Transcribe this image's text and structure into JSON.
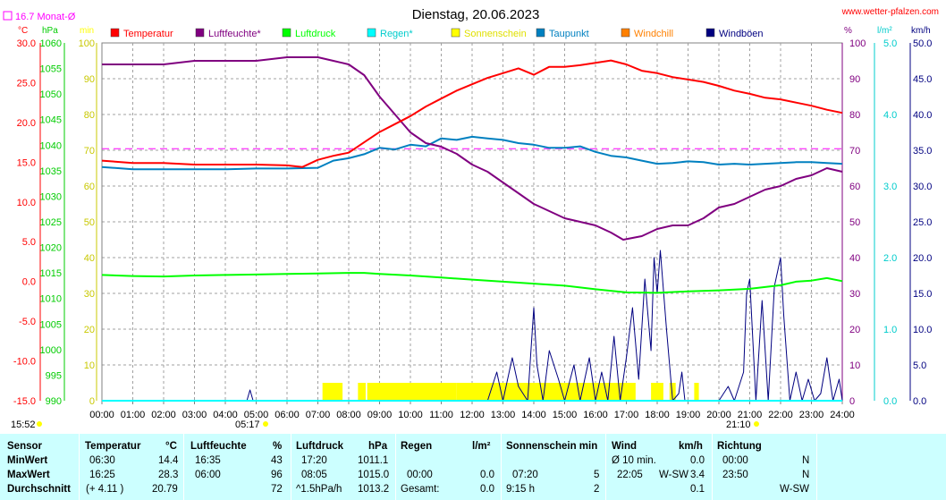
{
  "header": {
    "title": "Dienstag, 20.06.2023",
    "site": "www.wetter-pfalzen.com",
    "month_avg": "16.7 Monat-Ø",
    "unit_left": [
      "°C",
      "hPa",
      "min"
    ],
    "unit_right": [
      "%",
      "l/m²",
      "km/h"
    ]
  },
  "legend": [
    {
      "label": "Temperatur",
      "color": "#ff0000"
    },
    {
      "label": "Luftfeuchte*",
      "color": "#800080"
    },
    {
      "label": "Luftdruck",
      "color": "#00ff00"
    },
    {
      "label": "Regen*",
      "color": "#00ffff"
    },
    {
      "label": "Sonnenschein",
      "color": "#ffff00"
    },
    {
      "label": "Taupunkt",
      "color": "#0080c0"
    },
    {
      "label": "Windchill",
      "color": "#ff8000"
    },
    {
      "label": "Windböen",
      "color": "#000080"
    }
  ],
  "annotations": {
    "sunrise": "05:17",
    "sunset": "21:10",
    "time": "15:52"
  },
  "chart_data": {
    "type": "line",
    "title": "Dienstag, 20.06.2023",
    "x_ticks": [
      "00:00",
      "01:00",
      "02:00",
      "03:00",
      "04:00",
      "05:00",
      "06:00",
      "07:00",
      "08:00",
      "09:00",
      "10:00",
      "11:00",
      "12:00",
      "13:00",
      "14:00",
      "15:00",
      "16:00",
      "17:00",
      "18:00",
      "19:00",
      "20:00",
      "21:00",
      "22:00",
      "23:00",
      "24:00"
    ],
    "xlim": [
      0,
      24
    ],
    "axes": {
      "temperature_c": {
        "ylim": [
          -15,
          30
        ],
        "ticks": [
          "30.0",
          "25.0",
          "20.0",
          "15.0",
          "10.0",
          "5.0",
          "0.0",
          "-5.0",
          "-10.0",
          "-15.0"
        ]
      },
      "pressure_hpa": {
        "ylim": [
          990,
          1060
        ],
        "ticks": [
          "1060",
          "1055",
          "1050",
          "1045",
          "1040",
          "1035",
          "1030",
          "1025",
          "1020",
          "1015",
          "1010",
          "1005",
          "1000",
          "995",
          "990"
        ]
      },
      "sunshine_min": {
        "ylim": [
          0,
          100
        ],
        "ticks": [
          "100",
          "90",
          "80",
          "70",
          "60",
          "50",
          "40",
          "30",
          "20",
          "10",
          "0"
        ]
      },
      "humidity_pct": {
        "ylim": [
          0,
          100
        ],
        "ticks": [
          "100",
          "90",
          "80",
          "70",
          "60",
          "50",
          "40",
          "30",
          "20",
          "10",
          "0"
        ]
      },
      "rain_lm2": {
        "ylim": [
          0,
          5
        ],
        "ticks": [
          "5.0",
          "4.0",
          "3.0",
          "2.0",
          "1.0",
          "0.0"
        ]
      },
      "wind_kmh": {
        "ylim": [
          0,
          50
        ],
        "ticks": [
          "50.0",
          "45.0",
          "40.0",
          "35.0",
          "30.0",
          "25.0",
          "20.0",
          "15.0",
          "10.0",
          "5.0",
          "0.0"
        ]
      }
    },
    "month_avg_temperature": 16.7,
    "series": [
      {
        "name": "Temperatur",
        "axis": "temperature_c",
        "color": "#ff0000",
        "x": [
          0,
          1,
          2,
          3,
          4,
          5,
          6,
          6.5,
          7,
          7.5,
          8,
          8.5,
          9,
          9.5,
          10,
          10.5,
          11,
          11.5,
          12,
          12.5,
          13,
          13.5,
          14,
          14.5,
          15,
          15.5,
          16,
          16.5,
          17,
          17.5,
          18,
          18.5,
          19,
          19.5,
          20,
          20.5,
          21,
          21.5,
          22,
          22.5,
          23,
          23.5,
          24
        ],
        "y": [
          15.2,
          14.9,
          14.9,
          14.7,
          14.7,
          14.7,
          14.6,
          14.4,
          15.3,
          15.8,
          16.2,
          17.5,
          18.8,
          19.8,
          20.8,
          22.0,
          23.0,
          24.0,
          24.8,
          25.6,
          26.2,
          26.8,
          26.0,
          27.0,
          27.0,
          27.2,
          27.5,
          27.8,
          27.3,
          26.5,
          26.2,
          25.7,
          25.4,
          25.1,
          24.6,
          24.0,
          23.6,
          23.1,
          22.9,
          22.5,
          22.1,
          21.6,
          21.2
        ]
      },
      {
        "name": "Luftfeuchte*",
        "axis": "humidity_pct",
        "color": "#800080",
        "x": [
          0,
          0.5,
          1,
          2,
          3,
          4,
          5,
          6,
          6.5,
          7,
          7.5,
          8,
          8.5,
          9,
          9.5,
          10,
          10.5,
          11,
          11.5,
          12,
          12.5,
          13,
          13.5,
          14,
          14.5,
          15,
          15.5,
          16,
          16.5,
          16.9,
          17.5,
          18,
          18.5,
          19,
          19.5,
          20,
          20.5,
          21,
          21.5,
          22,
          22.5,
          23,
          23.5,
          24
        ],
        "y": [
          94,
          94,
          94,
          94,
          95,
          95,
          95,
          96,
          96,
          96,
          95,
          94,
          91,
          85,
          80,
          75,
          72,
          71,
          69,
          66,
          64,
          61,
          58,
          55,
          53,
          51,
          50,
          49,
          47,
          45,
          46,
          48,
          49,
          49,
          51,
          54,
          55,
          57,
          59,
          60,
          62,
          63,
          65,
          64
        ]
      },
      {
        "name": "Luftdruck",
        "axis": "pressure_hpa",
        "color": "#00ff00",
        "x": [
          0,
          1,
          2,
          3,
          4,
          5,
          6,
          7,
          8,
          8.5,
          9,
          10,
          11,
          12,
          13,
          14,
          15,
          16,
          17,
          18,
          19,
          20,
          21,
          22,
          22.5,
          23,
          23.5,
          24
        ],
        "y": [
          1014.6,
          1014.4,
          1014.3,
          1014.5,
          1014.6,
          1014.7,
          1014.8,
          1014.9,
          1015.0,
          1015.0,
          1014.8,
          1014.5,
          1014.1,
          1013.7,
          1013.3,
          1012.9,
          1012.5,
          1011.8,
          1011.2,
          1011.1,
          1011.4,
          1011.6,
          1011.9,
          1012.6,
          1013.3,
          1013.5,
          1014.0,
          1013.4
        ]
      },
      {
        "name": "Regen*",
        "axis": "rain_lm2",
        "color": "#00ffff",
        "x": [
          0,
          24
        ],
        "y": [
          0.0,
          0.0
        ]
      },
      {
        "name": "Taupunkt",
        "axis": "temperature_c",
        "color": "#0080c0",
        "x": [
          0,
          1,
          2,
          3,
          4,
          5,
          6,
          7,
          7.5,
          8,
          8.5,
          9,
          9.5,
          10,
          10.5,
          11,
          11.5,
          12,
          12.5,
          13,
          13.5,
          14,
          14.5,
          15,
          15.5,
          16,
          16.5,
          17,
          17.5,
          18,
          18.5,
          19,
          19.5,
          20,
          20.5,
          21,
          21.5,
          22,
          22.5,
          23,
          23.5,
          24
        ],
        "y": [
          14.4,
          14.1,
          14.1,
          14.1,
          14.1,
          14.2,
          14.2,
          14.3,
          15.2,
          15.5,
          16.0,
          16.8,
          16.6,
          17.2,
          17.0,
          18.0,
          17.8,
          18.2,
          18.0,
          17.8,
          17.4,
          17.2,
          16.8,
          16.8,
          17.0,
          16.3,
          15.8,
          15.6,
          15.2,
          14.8,
          14.9,
          15.1,
          15.0,
          14.7,
          14.8,
          14.7,
          14.8,
          14.9,
          15.0,
          15.0,
          14.9,
          14.8
        ]
      },
      {
        "name": "Windböen",
        "axis": "wind_kmh",
        "color": "#000080",
        "x": [
          0,
          4.7,
          4.8,
          4.9,
          5.0,
          12.5,
          12.8,
          13.0,
          13.3,
          13.5,
          13.8,
          14.0,
          14.1,
          14.3,
          14.5,
          14.8,
          15.0,
          15.3,
          15.5,
          15.8,
          16.0,
          16.2,
          16.4,
          16.6,
          16.8,
          17.0,
          17.2,
          17.4,
          17.6,
          17.8,
          17.9,
          18.0,
          18.1,
          18.3,
          18.5,
          18.7,
          18.8,
          18.9,
          19.0,
          19.2,
          19.4,
          19.6,
          20.0,
          20.3,
          20.5,
          20.8,
          20.9,
          21.0,
          21.2,
          21.4,
          21.6,
          21.8,
          22.0,
          22.1,
          22.3,
          22.5,
          22.7,
          22.9,
          23.1,
          23.3,
          23.5,
          23.7,
          23.9,
          24.0
        ],
        "y": [
          0,
          0,
          1.5,
          0,
          0,
          0,
          4,
          0,
          6,
          2,
          0,
          13,
          5,
          0,
          7,
          3,
          0,
          5,
          0,
          6,
          0,
          4,
          0,
          9,
          0,
          6,
          13,
          3,
          17,
          7,
          20,
          15,
          21,
          10,
          0,
          1,
          4,
          0,
          0,
          0,
          0,
          0,
          0,
          2,
          0,
          4,
          15,
          17,
          0,
          14,
          0,
          16,
          20,
          12,
          0,
          4,
          0,
          3,
          0,
          1,
          6,
          0,
          3,
          0
        ]
      }
    ],
    "bars": [
      {
        "name": "Sonnenschein",
        "axis": "sunshine_min",
        "color": "#ffff00",
        "intervals": [
          [
            7.15,
            7.8,
            5
          ],
          [
            8.3,
            8.55,
            5
          ],
          [
            8.6,
            11.5,
            5
          ],
          [
            11.5,
            17.3,
            5
          ],
          [
            17.8,
            18.2,
            5
          ],
          [
            18.4,
            18.6,
            5
          ],
          [
            19.2,
            19.35,
            5
          ]
        ]
      }
    ],
    "reference_lines": [
      {
        "name": "Monat-Ø",
        "axis": "temperature_c",
        "value": 16.7,
        "color": "#ff00ff",
        "style": "dashed"
      }
    ]
  },
  "stats": {
    "headers": {
      "sensor": "Sensor",
      "temp": "Temperatur",
      "temp_unit": "°C",
      "hum": "Luftfeuchte",
      "hum_unit": "%",
      "press": "Luftdruck",
      "press_unit": "hPa",
      "rain": "Regen",
      "rain_unit": "l/m²",
      "sun": "Sonnenschein min",
      "wind": "Wind",
      "wind_unit": "km/h",
      "dir": "Richtung"
    },
    "rows": [
      {
        "label": "MinWert",
        "temp_time": "06:30",
        "temp_val": "14.4",
        "hum_time": "16:35",
        "hum_val": "43",
        "press_time": "17:20",
        "press_val": "1011.1",
        "rain_time": "",
        "rain_val": "",
        "sun_time": "",
        "sun_val": "",
        "wind_time": "Ø 10 min.",
        "wind_dir": "",
        "wind_val": "0.0",
        "dir_time": "00:00",
        "dir_val": "N"
      },
      {
        "label": "MaxWert",
        "temp_time": "16:25",
        "temp_val": "28.3",
        "hum_time": "06:00",
        "hum_val": "96",
        "press_time": "08:05",
        "press_val": "1015.0",
        "rain_time": "00:00",
        "rain_val": "0.0",
        "sun_time": "07:20",
        "sun_val": "5",
        "wind_time": "22:05",
        "wind_dir": "W-SW",
        "wind_val": "3.4",
        "dir_time": "23:50",
        "dir_val": "N"
      },
      {
        "label": "Durchschnitt",
        "temp_time": "(+ 4.11 )",
        "temp_val": "20.79",
        "hum_time": "",
        "hum_val": "72",
        "press_time": "^1.5hPa/h",
        "press_val": "1013.2",
        "rain_time": "Gesamt:",
        "rain_val": "0.0",
        "sun_time": "9:15 h",
        "sun_val": "2",
        "wind_time": "",
        "wind_dir": "",
        "wind_val": "0.1",
        "dir_time": "",
        "dir_val": "W-SW"
      }
    ]
  }
}
